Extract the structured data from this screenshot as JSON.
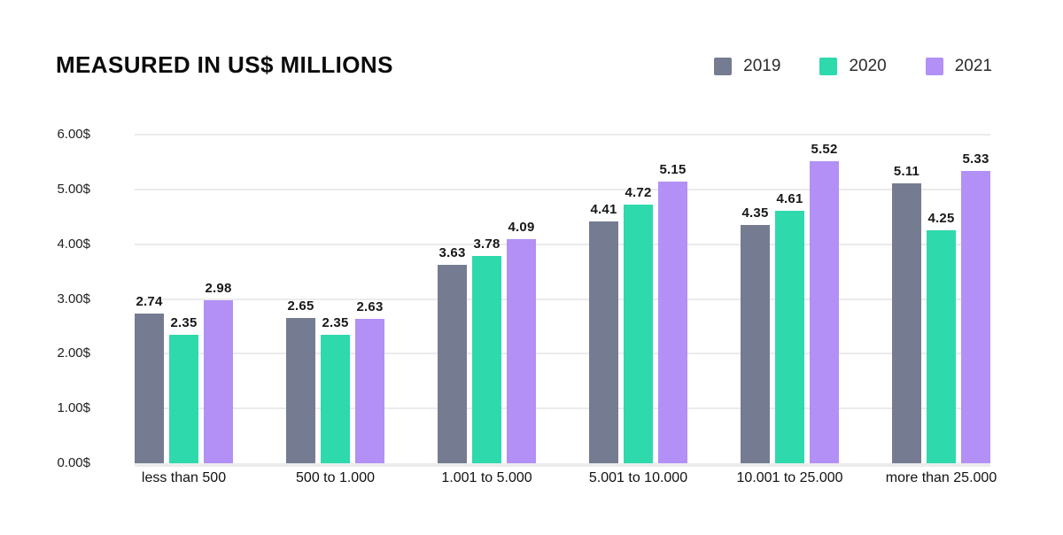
{
  "header": {
    "title": "MEASURED IN US$ MILLIONS"
  },
  "chart_data": {
    "type": "bar",
    "title": "MEASURED IN US$ MILLIONS",
    "categories": [
      "less than 500",
      "500 to 1.000",
      "1.001 to 5.000",
      "5.001 to 10.000",
      "10.001 to 25.000",
      "more than 25.000"
    ],
    "series": [
      {
        "name": "2019",
        "color": "#757c91",
        "values": [
          2.74,
          2.65,
          3.63,
          4.41,
          4.35,
          5.11
        ]
      },
      {
        "name": "2020",
        "color": "#2ed9ab",
        "values": [
          2.35,
          2.35,
          3.78,
          4.72,
          4.61,
          4.25
        ]
      },
      {
        "name": "2021",
        "color": "#b290f6",
        "values": [
          2.98,
          2.63,
          4.09,
          5.15,
          5.52,
          5.33
        ]
      }
    ],
    "y_axis": {
      "min": 0,
      "max": 6,
      "step": 1,
      "tick_labels": [
        "0.00$",
        "1.00$",
        "2.00$",
        "3.00$",
        "4.00$",
        "5.00$",
        "6.00$"
      ]
    },
    "grid": true,
    "legend_position": "top-right",
    "value_labels": true,
    "value_decimals": 2
  },
  "style": {
    "background": "#ffffff",
    "grid_color": "#ebebeb",
    "baseline_color": "#ececee"
  }
}
